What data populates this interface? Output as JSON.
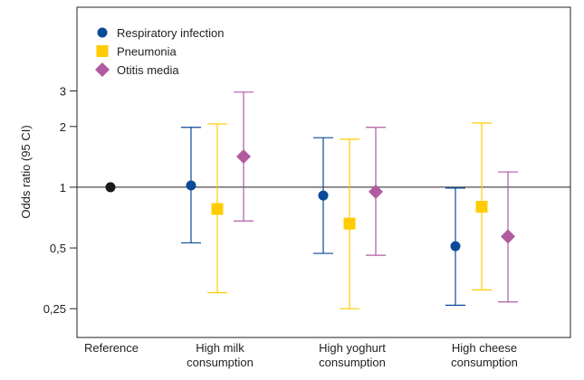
{
  "chart_data": {
    "type": "scatter",
    "subtype": "forest-plot-with-error-bars",
    "ylabel": "Odds ratio (95 CI)",
    "yscale": "log",
    "ylim": [
      0.18,
      7.8
    ],
    "yticks": [
      {
        "value": 3,
        "label": "3"
      },
      {
        "value": 2,
        "label": "2"
      },
      {
        "value": 1,
        "label": "1"
      },
      {
        "value": 0.5,
        "label": "0,5"
      },
      {
        "value": 0.25,
        "label": "0,25"
      }
    ],
    "reference_line": 1,
    "categories": [
      {
        "label": [
          "Reference"
        ]
      },
      {
        "label": [
          "High milk",
          "consumption"
        ]
      },
      {
        "label": [
          "High yoghurt",
          "consumption"
        ]
      },
      {
        "label": [
          "High cheese",
          "consumption"
        ]
      }
    ],
    "reference_point": {
      "category": 0,
      "value": 1,
      "color": "#1a1a1a"
    },
    "legend": {
      "position": "top-left"
    },
    "series": [
      {
        "name": "Respiratory infection",
        "marker": "circle",
        "color": "#0b4a99",
        "points": [
          null,
          {
            "or": 1.02,
            "lo": 0.53,
            "hi": 1.98
          },
          {
            "or": 0.91,
            "lo": 0.47,
            "hi": 1.76
          },
          {
            "or": 0.51,
            "lo": 0.26,
            "hi": 0.99
          }
        ]
      },
      {
        "name": "Pneumonia",
        "marker": "square",
        "color": "#ffcc00",
        "points": [
          null,
          {
            "or": 0.78,
            "lo": 0.3,
            "hi": 2.06
          },
          {
            "or": 0.66,
            "lo": 0.25,
            "hi": 1.73
          },
          {
            "or": 0.8,
            "lo": 0.31,
            "hi": 2.08
          }
        ]
      },
      {
        "name": "Otitis media",
        "marker": "diamond",
        "color": "#b05ba1",
        "points": [
          null,
          {
            "or": 1.42,
            "lo": 0.68,
            "hi": 2.96
          },
          {
            "or": 0.95,
            "lo": 0.46,
            "hi": 1.98
          },
          {
            "or": 0.57,
            "lo": 0.27,
            "hi": 1.19
          }
        ]
      }
    ]
  }
}
